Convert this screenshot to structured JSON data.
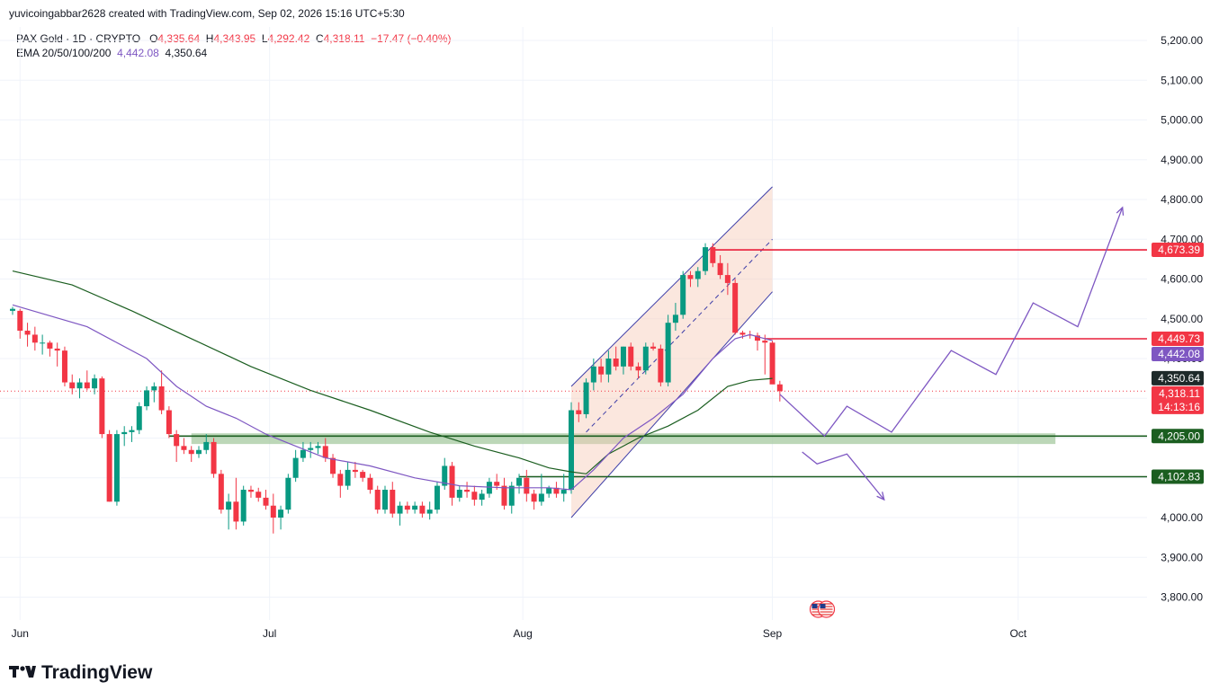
{
  "header": {
    "attribution": "yuvicoingabbar2628 created with TradingView.com, Sep 02, 2026 15:16 UTC+5:30"
  },
  "legend": {
    "symbol": "PAX Gold · 1D · CRYPTO",
    "open_label": "O",
    "open": "4,335.64",
    "high_label": "H",
    "high": "4,343.95",
    "low_label": "L",
    "low": "4,292.42",
    "close_label": "C",
    "close": "4,318.11",
    "change": "−17.47 (−0.40%)",
    "ema_label": "EMA 20/50/100/200",
    "ema20": "4,442.08",
    "ema50": "4,350.64"
  },
  "brand": {
    "name": "TradingView",
    "logo_icon": "tradingview-logo-icon"
  },
  "colors": {
    "up": "#089981",
    "down": "#f23645",
    "ema20": "#7e57c2",
    "ema50": "#1b5e20",
    "resistance": "#e91e3a",
    "support": "#1b5e20",
    "channel": "#3f3fa8",
    "zone": "#a5c9a0",
    "projection": "#7e57c2"
  },
  "chart_data": {
    "type": "candlestick",
    "title": "",
    "timeframe": "1D",
    "x_tick_labels": [
      "Jun",
      "Jul",
      "Aug",
      "Sep",
      "Oct"
    ],
    "y_tick_labels": [
      "5,200.00",
      "5,100.00",
      "5,000.00",
      "4,900.00",
      "4,800.00",
      "4,700.00",
      "4,600.00",
      "4,500.00",
      "4,400.00",
      "4,300.00",
      "4,200.00",
      "4,100.00",
      "4,000.00",
      "3,900.00",
      "3,800.00"
    ],
    "ylim": [
      3750,
      5250
    ],
    "grid": true,
    "price_labels": [
      {
        "value": 4673.39,
        "text": "4,673.39",
        "color": "#f23645",
        "kind": "resistance"
      },
      {
        "value": 4449.73,
        "text": "4,449.73",
        "color": "#f23645",
        "kind": "resistance"
      },
      {
        "value": 4442.08,
        "text": "4,442.08",
        "color": "#7e57c2",
        "kind": "ema20"
      },
      {
        "value": 4350.64,
        "text": "4,350.64",
        "color": "#1e2a2a",
        "kind": "ema50"
      },
      {
        "value": 4318.11,
        "text": "4,318.11",
        "color": "#f23645",
        "kind": "last"
      },
      {
        "value": 4205.0,
        "text": "4,205.00",
        "color": "#1b5e20",
        "kind": "support"
      },
      {
        "value": 4102.83,
        "text": "4,102.83",
        "color": "#1b5e20",
        "kind": "support"
      }
    ],
    "countdown": "14:13:16",
    "ohlc": [
      [
        4520,
        4530,
        4510,
        4525
      ],
      [
        4520,
        4525,
        4450,
        4470
      ],
      [
        4470,
        4490,
        4430,
        4460
      ],
      [
        4460,
        4480,
        4420,
        4440
      ],
      [
        4440,
        4460,
        4410,
        4440
      ],
      [
        4440,
        4445,
        4405,
        4425
      ],
      [
        4425,
        4440,
        4380,
        4420
      ],
      [
        4420,
        4430,
        4330,
        4340
      ],
      [
        4340,
        4360,
        4310,
        4325
      ],
      [
        4325,
        4350,
        4300,
        4340
      ],
      [
        4340,
        4370,
        4320,
        4325
      ],
      [
        4325,
        4360,
        4310,
        4350
      ],
      [
        4350,
        4355,
        4200,
        4210
      ],
      [
        4210,
        4220,
        4040,
        4040
      ],
      [
        4040,
        4220,
        4030,
        4210
      ],
      [
        4210,
        4230,
        4180,
        4215
      ],
      [
        4215,
        4230,
        4190,
        4220
      ],
      [
        4220,
        4290,
        4210,
        4280
      ],
      [
        4280,
        4330,
        4270,
        4320
      ],
      [
        4320,
        4340,
        4290,
        4330
      ],
      [
        4330,
        4370,
        4260,
        4270
      ],
      [
        4270,
        4280,
        4200,
        4210
      ],
      [
        4210,
        4220,
        4140,
        4180
      ],
      [
        4180,
        4200,
        4160,
        4170
      ],
      [
        4170,
        4180,
        4140,
        4160
      ],
      [
        4160,
        4180,
        4150,
        4170
      ],
      [
        4170,
        4210,
        4160,
        4190
      ],
      [
        4190,
        4200,
        4100,
        4110
      ],
      [
        4110,
        4120,
        4010,
        4020
      ],
      [
        4020,
        4060,
        3970,
        4040
      ],
      [
        4040,
        4100,
        3970,
        3990
      ],
      [
        3990,
        4080,
        3980,
        4070
      ],
      [
        4070,
        4080,
        4050,
        4065
      ],
      [
        4065,
        4075,
        4040,
        4050
      ],
      [
        4050,
        4070,
        4020,
        4030
      ],
      [
        4030,
        4060,
        3960,
        4000
      ],
      [
        4000,
        4030,
        3970,
        4020
      ],
      [
        4020,
        4110,
        4010,
        4100
      ],
      [
        4100,
        4170,
        4090,
        4150
      ],
      [
        4150,
        4190,
        4140,
        4170
      ],
      [
        4170,
        4190,
        4150,
        4175
      ],
      [
        4175,
        4190,
        4160,
        4180
      ],
      [
        4180,
        4200,
        4140,
        4150
      ],
      [
        4150,
        4160,
        4100,
        4110
      ],
      [
        4110,
        4120,
        4050,
        4080
      ],
      [
        4080,
        4140,
        4070,
        4120
      ],
      [
        4120,
        4140,
        4100,
        4115
      ],
      [
        4115,
        4120,
        4090,
        4100
      ],
      [
        4100,
        4110,
        4060,
        4070
      ],
      [
        4070,
        4080,
        4010,
        4020
      ],
      [
        4020,
        4080,
        4010,
        4070
      ],
      [
        4070,
        4090,
        4000,
        4010
      ],
      [
        4010,
        4040,
        3980,
        4030
      ],
      [
        4030,
        4040,
        4010,
        4020
      ],
      [
        4020,
        4040,
        4010,
        4030
      ],
      [
        4030,
        4040,
        4000,
        4010
      ],
      [
        4010,
        4040,
        3995,
        4020
      ],
      [
        4020,
        4090,
        4010,
        4080
      ],
      [
        4080,
        4150,
        4070,
        4130
      ],
      [
        4130,
        4140,
        4030,
        4050
      ],
      [
        4050,
        4080,
        4040,
        4070
      ],
      [
        4070,
        4090,
        4050,
        4065
      ],
      [
        4065,
        4080,
        4030,
        4045
      ],
      [
        4045,
        4070,
        4030,
        4060
      ],
      [
        4060,
        4100,
        4050,
        4090
      ],
      [
        4090,
        4110,
        4070,
        4080
      ],
      [
        4080,
        4100,
        4020,
        4030
      ],
      [
        4030,
        4090,
        4010,
        4080
      ],
      [
        4080,
        4110,
        4060,
        4100
      ],
      [
        4100,
        4120,
        4040,
        4060
      ],
      [
        4060,
        4070,
        4020,
        4040
      ],
      [
        4040,
        4110,
        4030,
        4060
      ],
      [
        4060,
        4080,
        4050,
        4075
      ],
      [
        4075,
        4090,
        4050,
        4060
      ],
      [
        4060,
        4110,
        4040,
        4070
      ],
      [
        4070,
        4290,
        4060,
        4270
      ],
      [
        4270,
        4290,
        4240,
        4260
      ],
      [
        4260,
        4350,
        4250,
        4340
      ],
      [
        4340,
        4400,
        4320,
        4380
      ],
      [
        4380,
        4400,
        4340,
        4360
      ],
      [
        4360,
        4420,
        4340,
        4400
      ],
      [
        4400,
        4430,
        4370,
        4380
      ],
      [
        4380,
        4430,
        4360,
        4430
      ],
      [
        4430,
        4440,
        4370,
        4380
      ],
      [
        4380,
        4390,
        4350,
        4370
      ],
      [
        4370,
        4440,
        4360,
        4430
      ],
      [
        4430,
        4440,
        4420,
        4425
      ],
      [
        4425,
        4435,
        4330,
        4340
      ],
      [
        4340,
        4510,
        4330,
        4490
      ],
      [
        4490,
        4540,
        4470,
        4510
      ],
      [
        4510,
        4620,
        4500,
        4610
      ],
      [
        4610,
        4620,
        4580,
        4600
      ],
      [
        4600,
        4630,
        4580,
        4620
      ],
      [
        4620,
        4690,
        4610,
        4680
      ],
      [
        4680,
        4690,
        4630,
        4640
      ],
      [
        4640,
        4660,
        4600,
        4610
      ],
      [
        4610,
        4640,
        4560,
        4590
      ],
      [
        4590,
        4600,
        4460,
        4465
      ],
      [
        4465,
        4470,
        4450,
        4460
      ],
      [
        4460,
        4470,
        4450,
        4458
      ],
      [
        4458,
        4465,
        4420,
        4445
      ],
      [
        4445,
        4460,
        4360,
        4440
      ],
      [
        4440,
        4445,
        4350,
        4335
      ],
      [
        4335,
        4344,
        4292,
        4318
      ]
    ],
    "ema20": [
      [
        0,
        4535
      ],
      [
        10,
        4480
      ],
      [
        18,
        4400
      ],
      [
        22,
        4330
      ],
      [
        26,
        4280
      ],
      [
        30,
        4250
      ],
      [
        34,
        4210
      ],
      [
        38,
        4180
      ],
      [
        42,
        4150
      ],
      [
        48,
        4130
      ],
      [
        54,
        4100
      ],
      [
        60,
        4080
      ],
      [
        66,
        4075
      ],
      [
        72,
        4075
      ],
      [
        75,
        4070
      ],
      [
        78,
        4120
      ],
      [
        82,
        4200
      ],
      [
        86,
        4250
      ],
      [
        90,
        4310
      ],
      [
        94,
        4400
      ],
      [
        97,
        4450
      ],
      [
        99,
        4460
      ],
      [
        101,
        4450
      ],
      [
        102,
        4445
      ]
    ],
    "ema50": [
      [
        0,
        4620
      ],
      [
        8,
        4585
      ],
      [
        16,
        4520
      ],
      [
        24,
        4450
      ],
      [
        32,
        4380
      ],
      [
        40,
        4320
      ],
      [
        48,
        4270
      ],
      [
        56,
        4215
      ],
      [
        62,
        4180
      ],
      [
        68,
        4150
      ],
      [
        72,
        4125
      ],
      [
        75,
        4115
      ],
      [
        77,
        4110
      ],
      [
        80,
        4160
      ],
      [
        84,
        4200
      ],
      [
        88,
        4230
      ],
      [
        92,
        4270
      ],
      [
        96,
        4330
      ],
      [
        99,
        4345
      ],
      [
        102,
        4350
      ]
    ],
    "channel": {
      "upper": [
        [
          75,
          4330
        ],
        [
          102,
          4832
        ]
      ],
      "mid": [
        [
          77,
          4215
        ],
        [
          102,
          4700
        ]
      ],
      "lower": [
        [
          75,
          4000
        ],
        [
          102,
          4568
        ]
      ]
    },
    "horizontal_lines": [
      {
        "value": 4673.39,
        "from": 94,
        "to": "end",
        "color": "#e91e3a"
      },
      {
        "value": 4449.73,
        "from": 101,
        "to": "end",
        "color": "#e91e3a"
      },
      {
        "value": 4205.0,
        "from": 21,
        "to": "end",
        "color": "#1b5e20"
      },
      {
        "value": 4102.83,
        "from": 68,
        "to": "end",
        "color": "#1b5e20"
      }
    ],
    "support_zone": {
      "from": 24,
      "to": 140,
      "y": [
        4185,
        4212
      ]
    },
    "projection_up": [
      [
        103,
        4310
      ],
      [
        109,
        4205
      ],
      [
        112,
        4280
      ],
      [
        118,
        4215
      ],
      [
        126,
        4420
      ],
      [
        132,
        4360
      ],
      [
        137,
        4540
      ],
      [
        143,
        4480
      ],
      [
        149,
        4780
      ]
    ],
    "projection_down": [
      [
        106,
        4165
      ],
      [
        108,
        4135
      ],
      [
        112,
        4160
      ],
      [
        117,
        4045
      ]
    ],
    "event_marker": {
      "index": 109,
      "icon": "us-flag-event-icon"
    }
  }
}
